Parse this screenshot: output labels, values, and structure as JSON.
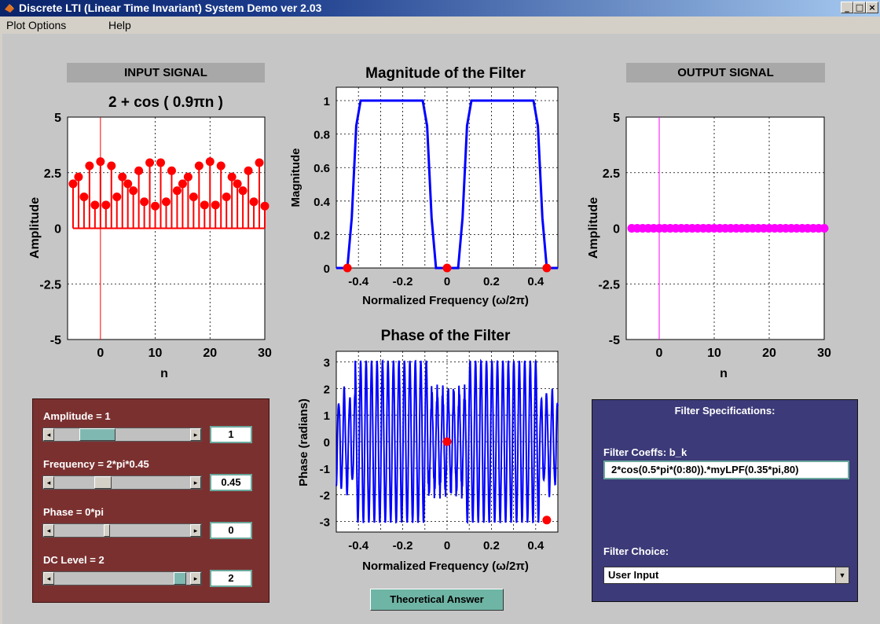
{
  "window": {
    "title": "Discrete LTI (Linear Time Invariant) System Demo ver 2.03",
    "min": "_",
    "max": "□",
    "close": "×"
  },
  "menu": {
    "items": [
      "Plot Options",
      "Help"
    ]
  },
  "input": {
    "header": "INPUT SIGNAL",
    "plot_title": "2 + cos ( 0.9πn )",
    "xlabel": "n",
    "ylabel": "Amplitude",
    "xticks": [
      "0",
      "10",
      "20",
      "30"
    ],
    "yticks": [
      "5",
      "2.5",
      "0",
      "-2.5",
      "-5"
    ]
  },
  "output": {
    "header": "OUTPUT SIGNAL",
    "xlabel": "n",
    "ylabel": "Amplitude",
    "xticks": [
      "0",
      "10",
      "20",
      "30"
    ],
    "yticks": [
      "5",
      "2.5",
      "0",
      "-2.5",
      "-5"
    ]
  },
  "magnitude": {
    "title": "Magnitude of the Filter",
    "xlabel": "Normalized Frequency (ω/2π)",
    "ylabel": "Magnitude",
    "xticks": [
      "-0.4",
      "-0.2",
      "0",
      "0.2",
      "0.4"
    ],
    "yticks": [
      "1",
      "0.8",
      "0.6",
      "0.4",
      "0.2",
      "0"
    ]
  },
  "phase": {
    "title": "Phase of the Filter",
    "xlabel": "Normalized Frequency (ω/2π)",
    "ylabel": "Phase (radians)",
    "xticks": [
      "-0.4",
      "-0.2",
      "0",
      "0.2",
      "0.4"
    ],
    "yticks": [
      "3",
      "2",
      "1",
      "0",
      "-1",
      "-2",
      "-3"
    ]
  },
  "controls": {
    "amplitude": {
      "label": "Amplitude = 1",
      "value": "1",
      "position": 0.25
    },
    "frequency": {
      "label": "Frequency = 2*pi*0.45",
      "value": "0.45",
      "position": 0.34
    },
    "phase": {
      "label": "Phase = 0*pi",
      "value": "0",
      "position": 0.38
    },
    "dc": {
      "label": "DC Level = 2",
      "value": "2",
      "position": 0.97
    }
  },
  "filter": {
    "title": "Filter Specifications:",
    "coeffs_label": "Filter Coeffs: b_k",
    "coeffs_value": "2*cos(0.5*pi*(0:80)).*myLPF(0.35*pi,80)",
    "choice_label": "Filter Choice:",
    "choice_value": "User Input"
  },
  "theory_button": "Theoretical Answer",
  "colors": {
    "input": "#ff0000",
    "output": "#ff00ff",
    "filter": "#0000ff",
    "marker": "#ff0000",
    "controls_panel": "#7b3030",
    "filter_panel": "#3c3a78"
  },
  "chart_data": [
    {
      "type": "stem",
      "name": "input",
      "title": "2 + cos ( 0.9πn )",
      "xlabel": "n",
      "ylabel": "Amplitude",
      "xlim": [
        -6,
        30
      ],
      "ylim": [
        -5,
        5
      ],
      "x": [
        -5,
        -4,
        -3,
        -2,
        -1,
        0,
        1,
        2,
        3,
        4,
        5,
        6,
        7,
        8,
        9,
        10,
        11,
        12,
        13,
        14,
        15,
        16,
        17,
        18,
        19,
        20,
        21,
        22,
        23,
        24,
        25,
        26,
        27,
        28,
        29,
        30
      ],
      "y_formula": "2 + cos(0.9*pi*n)"
    },
    {
      "type": "stem",
      "name": "output",
      "xlabel": "n",
      "ylabel": "Amplitude",
      "xlim": [
        -6,
        30
      ],
      "ylim": [
        -5,
        5
      ],
      "x": [
        -5,
        -4,
        -3,
        -2,
        -1,
        0,
        1,
        2,
        3,
        4,
        5,
        6,
        7,
        8,
        9,
        10,
        11,
        12,
        13,
        14,
        15,
        16,
        17,
        18,
        19,
        20,
        21,
        22,
        23,
        24,
        25,
        26,
        27,
        28,
        29,
        30
      ],
      "y": [
        0,
        0,
        0,
        0,
        0,
        0,
        0,
        0,
        0,
        0,
        0,
        0,
        0,
        0,
        0,
        0,
        0,
        0,
        0,
        0,
        0,
        0,
        0,
        0,
        0,
        0,
        0,
        0,
        0,
        0,
        0,
        0,
        0,
        0,
        0,
        0
      ]
    },
    {
      "type": "line",
      "name": "magnitude",
      "title": "Magnitude of the Filter",
      "xlabel": "Normalized Frequency (ω/2π)",
      "ylabel": "Magnitude",
      "xlim": [
        -0.5,
        0.5
      ],
      "ylim": [
        0,
        1.08
      ],
      "x": [
        -0.5,
        -0.45,
        -0.43,
        -0.41,
        -0.39,
        -0.11,
        -0.09,
        -0.07,
        -0.05,
        0.05,
        0.07,
        0.09,
        0.11,
        0.39,
        0.41,
        0.43,
        0.45,
        0.5
      ],
      "y": [
        0,
        0,
        0.3,
        0.85,
        1,
        1,
        0.85,
        0.3,
        0,
        0,
        0.3,
        0.85,
        1,
        1,
        0.85,
        0.3,
        0,
        0
      ],
      "markers": [
        {
          "x": -0.45,
          "y": 0
        },
        {
          "x": 0,
          "y": 0
        },
        {
          "x": 0.45,
          "y": 0
        }
      ]
    },
    {
      "type": "line",
      "name": "phase",
      "title": "Phase of the Filter",
      "xlabel": "Normalized Frequency (ω/2π)",
      "ylabel": "Phase (radians)",
      "xlim": [
        -0.5,
        0.5
      ],
      "ylim": [
        -3.4,
        3.4
      ],
      "description_free": true,
      "markers": [
        {
          "x": 0,
          "y": 0
        },
        {
          "x": 0.45,
          "y": -2.95
        }
      ]
    }
  ]
}
